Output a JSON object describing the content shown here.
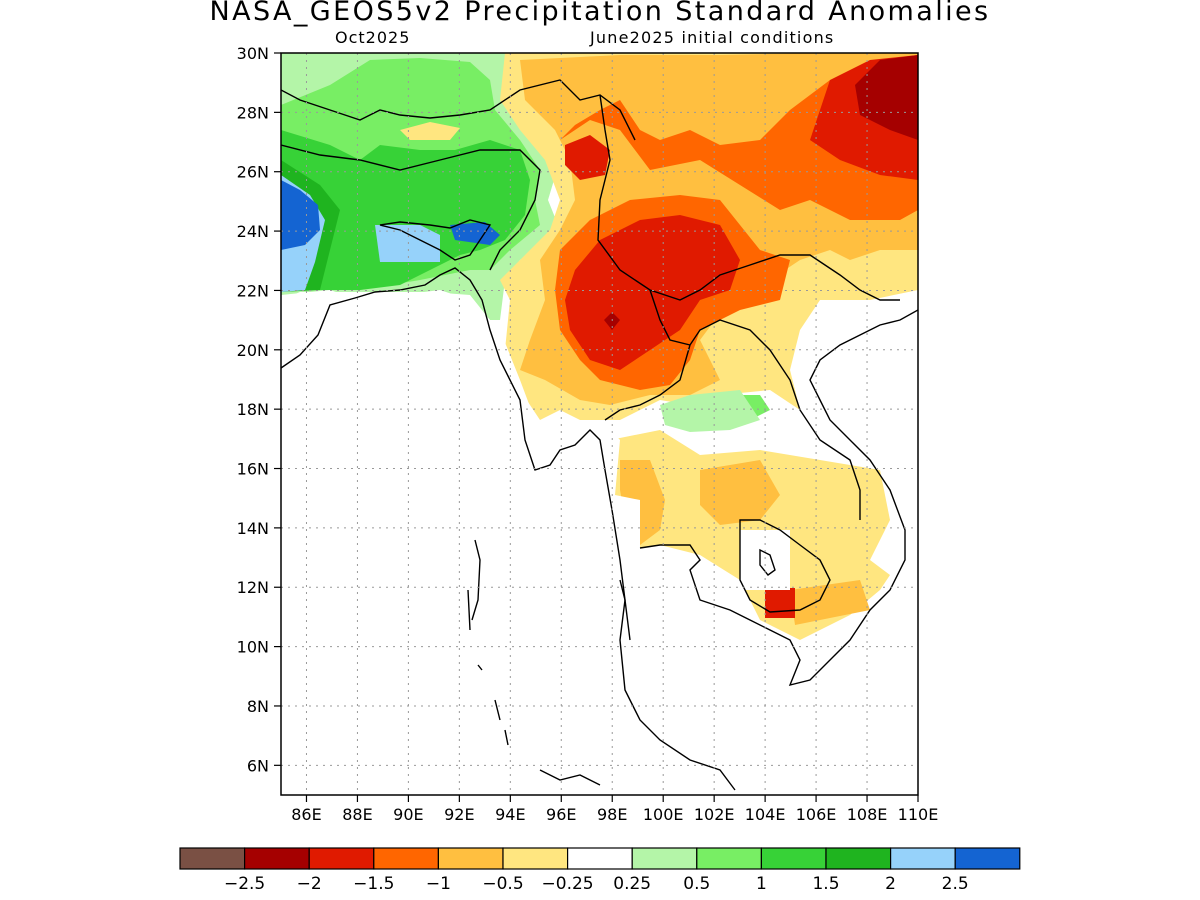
{
  "title": "NASA_GEOS5v2 Precipitation Standard Anomalies",
  "subtitle_left": "Oct2025",
  "subtitle_right": "June2025 initial conditions",
  "lat_ticks": [
    "30N",
    "28N",
    "26N",
    "24N",
    "22N",
    "20N",
    "18N",
    "16N",
    "14N",
    "12N",
    "10N",
    "8N",
    "6N"
  ],
  "lon_ticks": [
    "86E",
    "88E",
    "90E",
    "92E",
    "94E",
    "96E",
    "98E",
    "100E",
    "102E",
    "104E",
    "106E",
    "108E",
    "110E"
  ],
  "colorbar": {
    "colors": [
      "#7a5044",
      "#a50000",
      "#e01a00",
      "#ff6600",
      "#ffbf40",
      "#ffe680",
      "#ffffff",
      "#b4f5a8",
      "#78ee64",
      "#37d237",
      "#1fb41f",
      "#96d2fa",
      "#1464d2"
    ],
    "labels": [
      "−2.5",
      "−2",
      "−1.5",
      "−1",
      "−0.5",
      "−0.25",
      "0.25",
      "0.5",
      "1",
      "1.5",
      "2",
      "2.5"
    ]
  },
  "chart_data": {
    "type": "heatmap",
    "title": "NASA_GEOS5v2 Precipitation Standard Anomalies",
    "variable": "Precipitation standard anomaly",
    "forecast_month": "Oct2025",
    "initial_conditions": "June2025 initial conditions",
    "lon_range": [
      85,
      110
    ],
    "lat_range": [
      5,
      30
    ],
    "grid": true,
    "legend_placement": "bottom",
    "levels": [
      -2.5,
      -2,
      -1.5,
      -1,
      -0.5,
      -0.25,
      0.25,
      0.5,
      1,
      1.5,
      2,
      2.5
    ],
    "regions": [
      {
        "lon": [
          85,
          87
        ],
        "lat": [
          22.5,
          25.5
        ],
        "value": 2.7
      },
      {
        "lon": [
          85,
          87
        ],
        "lat": [
          21,
          26
        ],
        "value": 2.2
      },
      {
        "lon": [
          85,
          95
        ],
        "lat": [
          22,
          28
        ],
        "value": 1.7
      },
      {
        "lon": [
          85,
          95.5
        ],
        "lat": [
          20,
          30
        ],
        "value": 0.7
      },
      {
        "lon": [
          90.5,
          93
        ],
        "lat": [
          23.2,
          24.5
        ],
        "value": 2.2
      },
      {
        "lon": [
          89,
          91
        ],
        "lat": [
          27.2,
          28.2
        ],
        "value": -0.6
      },
      {
        "lon": [
          94.5,
          110
        ],
        "lat": [
          17,
          30
        ],
        "value": -0.6
      },
      {
        "lon": [
          96,
          110
        ],
        "lat": [
          20,
          29
        ],
        "value": -1.2
      },
      {
        "lon": [
          97,
          101.5
        ],
        "lat": [
          19.5,
          24
        ],
        "value": -1.8
      },
      {
        "lon": [
          104,
          110
        ],
        "lat": [
          25.5,
          30
        ],
        "value": -1.8
      },
      {
        "lon": [
          107.5,
          110
        ],
        "lat": [
          27.5,
          30
        ],
        "value": -2.3
      },
      {
        "lon": [
          98.5,
          99
        ],
        "lat": [
          20.7,
          21.2
        ],
        "value": -2.2
      },
      {
        "lon": [
          101,
          104.5
        ],
        "lat": [
          17.5,
          18.5
        ],
        "value": 0.7
      },
      {
        "lon": [
          97,
          107
        ],
        "lat": [
          12.5,
          16.5
        ],
        "value": -0.6
      },
      {
        "lon": [
          103.5,
          107
        ],
        "lat": [
          10.5,
          12.5
        ],
        "value": -0.7
      },
      {
        "lon": [
          104,
          105
        ],
        "lat": [
          11,
          11.5
        ],
        "value": -1.3
      }
    ]
  }
}
